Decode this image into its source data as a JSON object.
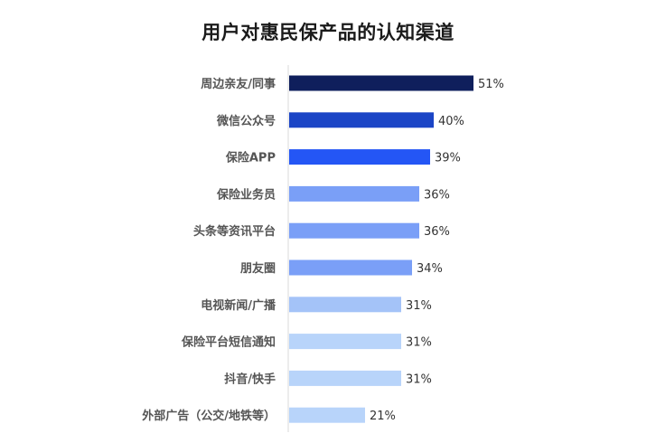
{
  "chart_data": {
    "type": "bar",
    "orientation": "horizontal",
    "title": "用户对惠民保产品的认知渠道",
    "xlabel": "",
    "ylabel": "",
    "xlim": [
      0,
      60
    ],
    "grid": false,
    "categories": [
      "周边亲友/同事",
      "微信公众号",
      "保险APP",
      "保险业务员",
      "头条等资讯平台",
      "朋友圈",
      "电视新闻/广播",
      "保险平台短信通知",
      "抖音/快手",
      "外部广告（公交/地铁等）"
    ],
    "values": [
      51,
      40,
      39,
      36,
      36,
      34,
      31,
      31,
      31,
      21
    ],
    "value_labels": [
      "51%",
      "40%",
      "39%",
      "36%",
      "36%",
      "34%",
      "31%",
      "31%",
      "31%",
      "21%"
    ],
    "bar_colors": [
      "#0f1f5c",
      "#1b45c6",
      "#2456f5",
      "#7a9ff7",
      "#7a9ff7",
      "#7a9ff7",
      "#a4c3f8",
      "#b8d4fa",
      "#b8d4fa",
      "#b8d4fa"
    ]
  }
}
